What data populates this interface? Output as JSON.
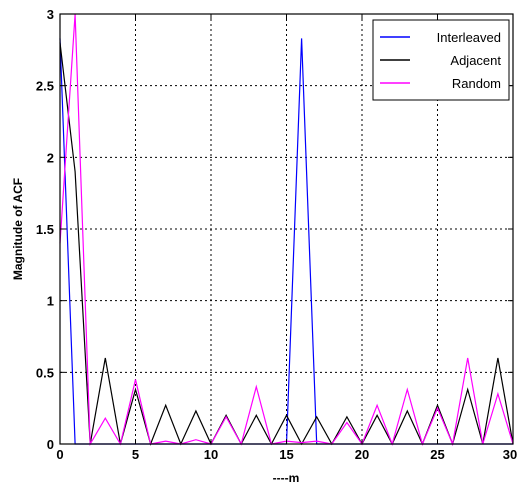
{
  "chart_data": {
    "type": "line",
    "title": "",
    "xlabel": "----m",
    "ylabel": "Magnitude of ACF",
    "xlim": [
      0,
      30
    ],
    "ylim": [
      0,
      3
    ],
    "xticks": [
      0,
      5,
      10,
      15,
      20,
      25,
      30
    ],
    "yticks": [
      0,
      0.5,
      1,
      1.5,
      2,
      2.5,
      3
    ],
    "xtick_labels": [
      "0",
      "5",
      "10",
      "15",
      "20",
      "25",
      "30"
    ],
    "ytick_labels": [
      "0",
      "0.5",
      "1",
      "1.5",
      "2",
      "2.5",
      "3"
    ],
    "grid": true,
    "legend_position": "top-right",
    "x": [
      0,
      1,
      2,
      3,
      4,
      5,
      6,
      7,
      8,
      9,
      10,
      11,
      12,
      13,
      14,
      15,
      16,
      17,
      18,
      19,
      20,
      21,
      22,
      23,
      24,
      25,
      26,
      27,
      28,
      29,
      30
    ],
    "series": [
      {
        "name": "Interleaved",
        "color": "#0000ff",
        "values": [
          2.83,
          0,
          0,
          0,
          0,
          0,
          0,
          0,
          0,
          0,
          0,
          0,
          0,
          0,
          0,
          0,
          2.83,
          0,
          0,
          0,
          0,
          0,
          0,
          0,
          0,
          0,
          0,
          0,
          0,
          0,
          0
        ]
      },
      {
        "name": "Adjacent",
        "color": "#000000",
        "values": [
          2.8,
          1.9,
          0,
          0.6,
          0,
          0.38,
          0,
          0.27,
          0,
          0.23,
          0,
          0.2,
          0,
          0.2,
          0,
          0.2,
          0,
          0.19,
          0,
          0.19,
          0,
          0.2,
          0,
          0.23,
          0,
          0.27,
          0,
          0.38,
          0,
          0.6,
          0
        ]
      },
      {
        "name": "Random",
        "color": "#ff00ff",
        "values": [
          1.4,
          3.0,
          0,
          0.18,
          0,
          0.45,
          0,
          0.02,
          0,
          0.03,
          0,
          0.19,
          0,
          0.4,
          0,
          0.02,
          0.01,
          0.02,
          0,
          0.15,
          0,
          0.27,
          0,
          0.38,
          0,
          0.25,
          0,
          0.6,
          0,
          0.35,
          0
        ]
      }
    ]
  }
}
